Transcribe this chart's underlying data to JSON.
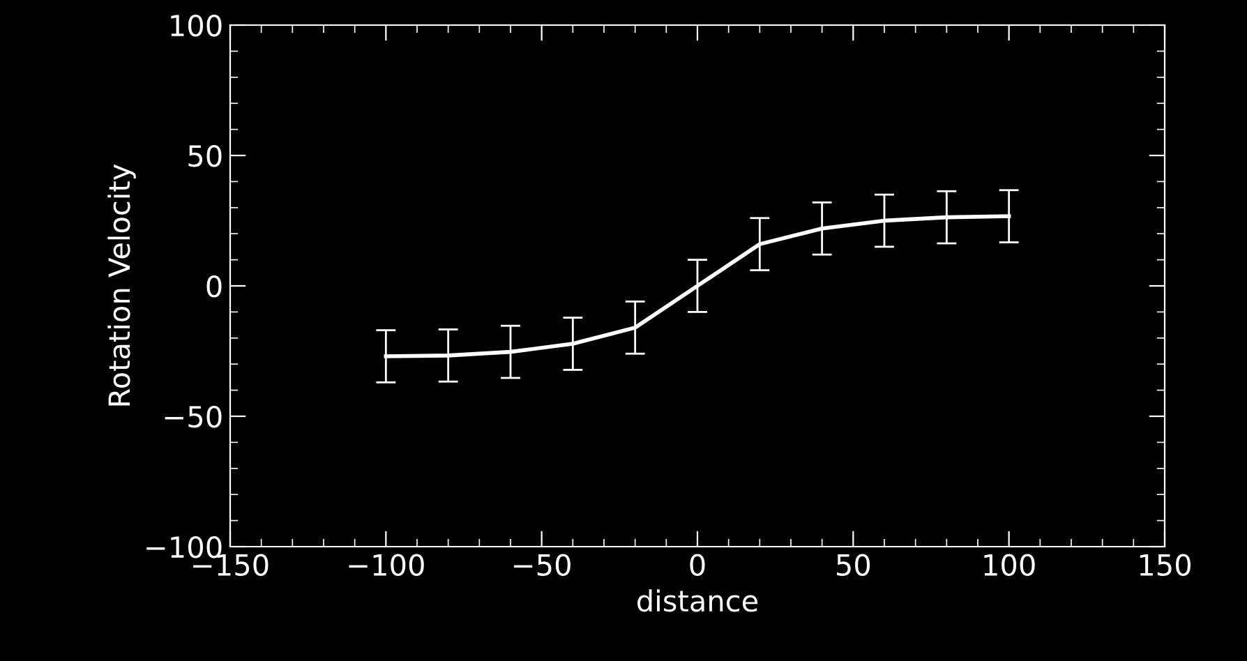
{
  "chart_data": {
    "type": "line",
    "xlabel": "distance",
    "ylabel": "Rotation Velocity",
    "x": [
      -100,
      -80,
      -60,
      -40,
      -20,
      0,
      20,
      40,
      60,
      80,
      100
    ],
    "series": [
      {
        "color": "#ffffff",
        "values": [
          -27,
          -26.7,
          -25.3,
          -22.2,
          -16,
          0,
          16,
          22,
          25,
          26.3,
          26.7
        ],
        "errors": [
          10,
          10,
          10,
          10,
          10,
          10,
          10,
          10,
          10,
          10,
          10
        ]
      }
    ],
    "xlim": [
      -150,
      150
    ],
    "xticks": [
      -150,
      -100,
      -50,
      0,
      50,
      100,
      150
    ],
    "ylim": [
      -100,
      100
    ],
    "yticks": [
      -100,
      -50,
      0,
      50,
      100
    ],
    "grid": false,
    "legend": false,
    "marker": "none",
    "line_style": "solid"
  }
}
